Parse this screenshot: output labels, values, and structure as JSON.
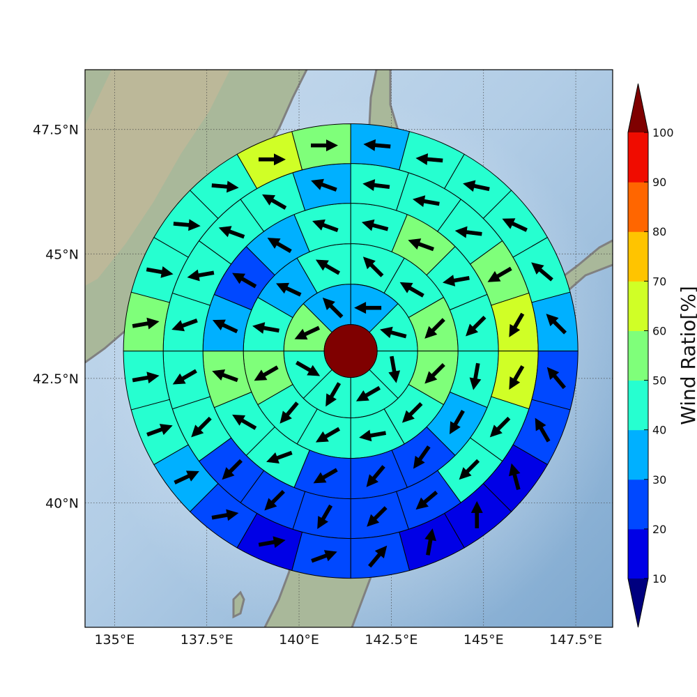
{
  "map": {
    "lon_range": [
      134.2,
      148.5
    ],
    "lat_range": [
      37.5,
      48.7
    ],
    "lon_ticks": [
      {
        "value": 135,
        "label": "135°E"
      },
      {
        "value": 137.5,
        "label": "137.5°E"
      },
      {
        "value": 140,
        "label": "140°E"
      },
      {
        "value": 142.5,
        "label": "142.5°E"
      },
      {
        "value": 145,
        "label": "145°E"
      },
      {
        "value": 147.5,
        "label": "147.5°E"
      }
    ],
    "lat_ticks": [
      {
        "value": 47.5,
        "label": "47.5°N"
      },
      {
        "value": 45,
        "label": "45°N"
      },
      {
        "value": 42.5,
        "label": "42.5°N"
      },
      {
        "value": 40,
        "label": "40°N"
      }
    ],
    "grid": true,
    "coastline_color": "#808080",
    "center": {
      "lon": 141.4,
      "lat": 43.05
    }
  },
  "colorbar": {
    "label": "Wind Ratio[%]",
    "ticks": [
      "10",
      "20",
      "30",
      "40",
      "50",
      "60",
      "70",
      "80",
      "90",
      "100"
    ],
    "under_color": "#00007f",
    "over_color": "#7f0000",
    "colors": [
      "#0000e6",
      "#0048ff",
      "#00b0ff",
      "#26ffd0",
      "#7fff7a",
      "#d0ff26",
      "#ffc400",
      "#ff6600",
      "#f00c00"
    ]
  },
  "chart_data": {
    "type": "heatmap",
    "ylabel": "Wind Ratio[%]",
    "bins": [
      10,
      20,
      30,
      40,
      50,
      60,
      70,
      80,
      90,
      100
    ],
    "center_value": 100,
    "rings": [
      {
        "segments": 8,
        "values": [
          30,
          40,
          45,
          45,
          40,
          45,
          55,
          30
        ]
      },
      {
        "segments": 12,
        "values": [
          40,
          40,
          55,
          55,
          45,
          40,
          45,
          45,
          55,
          45,
          30,
          40
        ]
      },
      {
        "segments": 16,
        "values": [
          45,
          55,
          45,
          45,
          40,
          30,
          25,
          25,
          25,
          40,
          45,
          50,
          30,
          25,
          30,
          45
        ]
      },
      {
        "segments": 20,
        "values": [
          45,
          40,
          45,
          55,
          60,
          60,
          45,
          40,
          25,
          25,
          25,
          25,
          25,
          40,
          40,
          45,
          45,
          40,
          40,
          30
        ]
      },
      {
        "segments": 24,
        "values": [
          30,
          45,
          45,
          45,
          45,
          30,
          25,
          25,
          15,
          15,
          15,
          25,
          25,
          15,
          25,
          30,
          45,
          45,
          55,
          45,
          45,
          45,
          60,
          50
        ]
      }
    ],
    "arrow_angles_deg": [
      [
        0,
        15,
        -100,
        -30,
        -60,
        -150,
        -25,
        45
      ],
      [
        45,
        30,
        -45,
        -45,
        -45,
        -10,
        -30,
        -50,
        -30,
        10,
        25,
        30
      ],
      [
        15,
        20,
        -10,
        -45,
        -80,
        -60,
        -55,
        -50,
        -30,
        -20,
        30,
        20,
        25,
        30,
        30,
        20
      ],
      [
        7,
        10,
        7,
        -30,
        -60,
        -60,
        -45,
        -45,
        -40,
        -45,
        -60,
        -45,
        -45,
        -45,
        -30,
        -20,
        -10,
        20,
        30,
        20
      ],
      [
        5,
        5,
        12,
        25,
        40,
        45,
        50,
        60,
        75,
        90,
        100,
        130,
        160,
        170,
        170,
        155,
        160,
        170,
        170,
        -170,
        -175,
        -175,
        180,
        180
      ]
    ]
  }
}
